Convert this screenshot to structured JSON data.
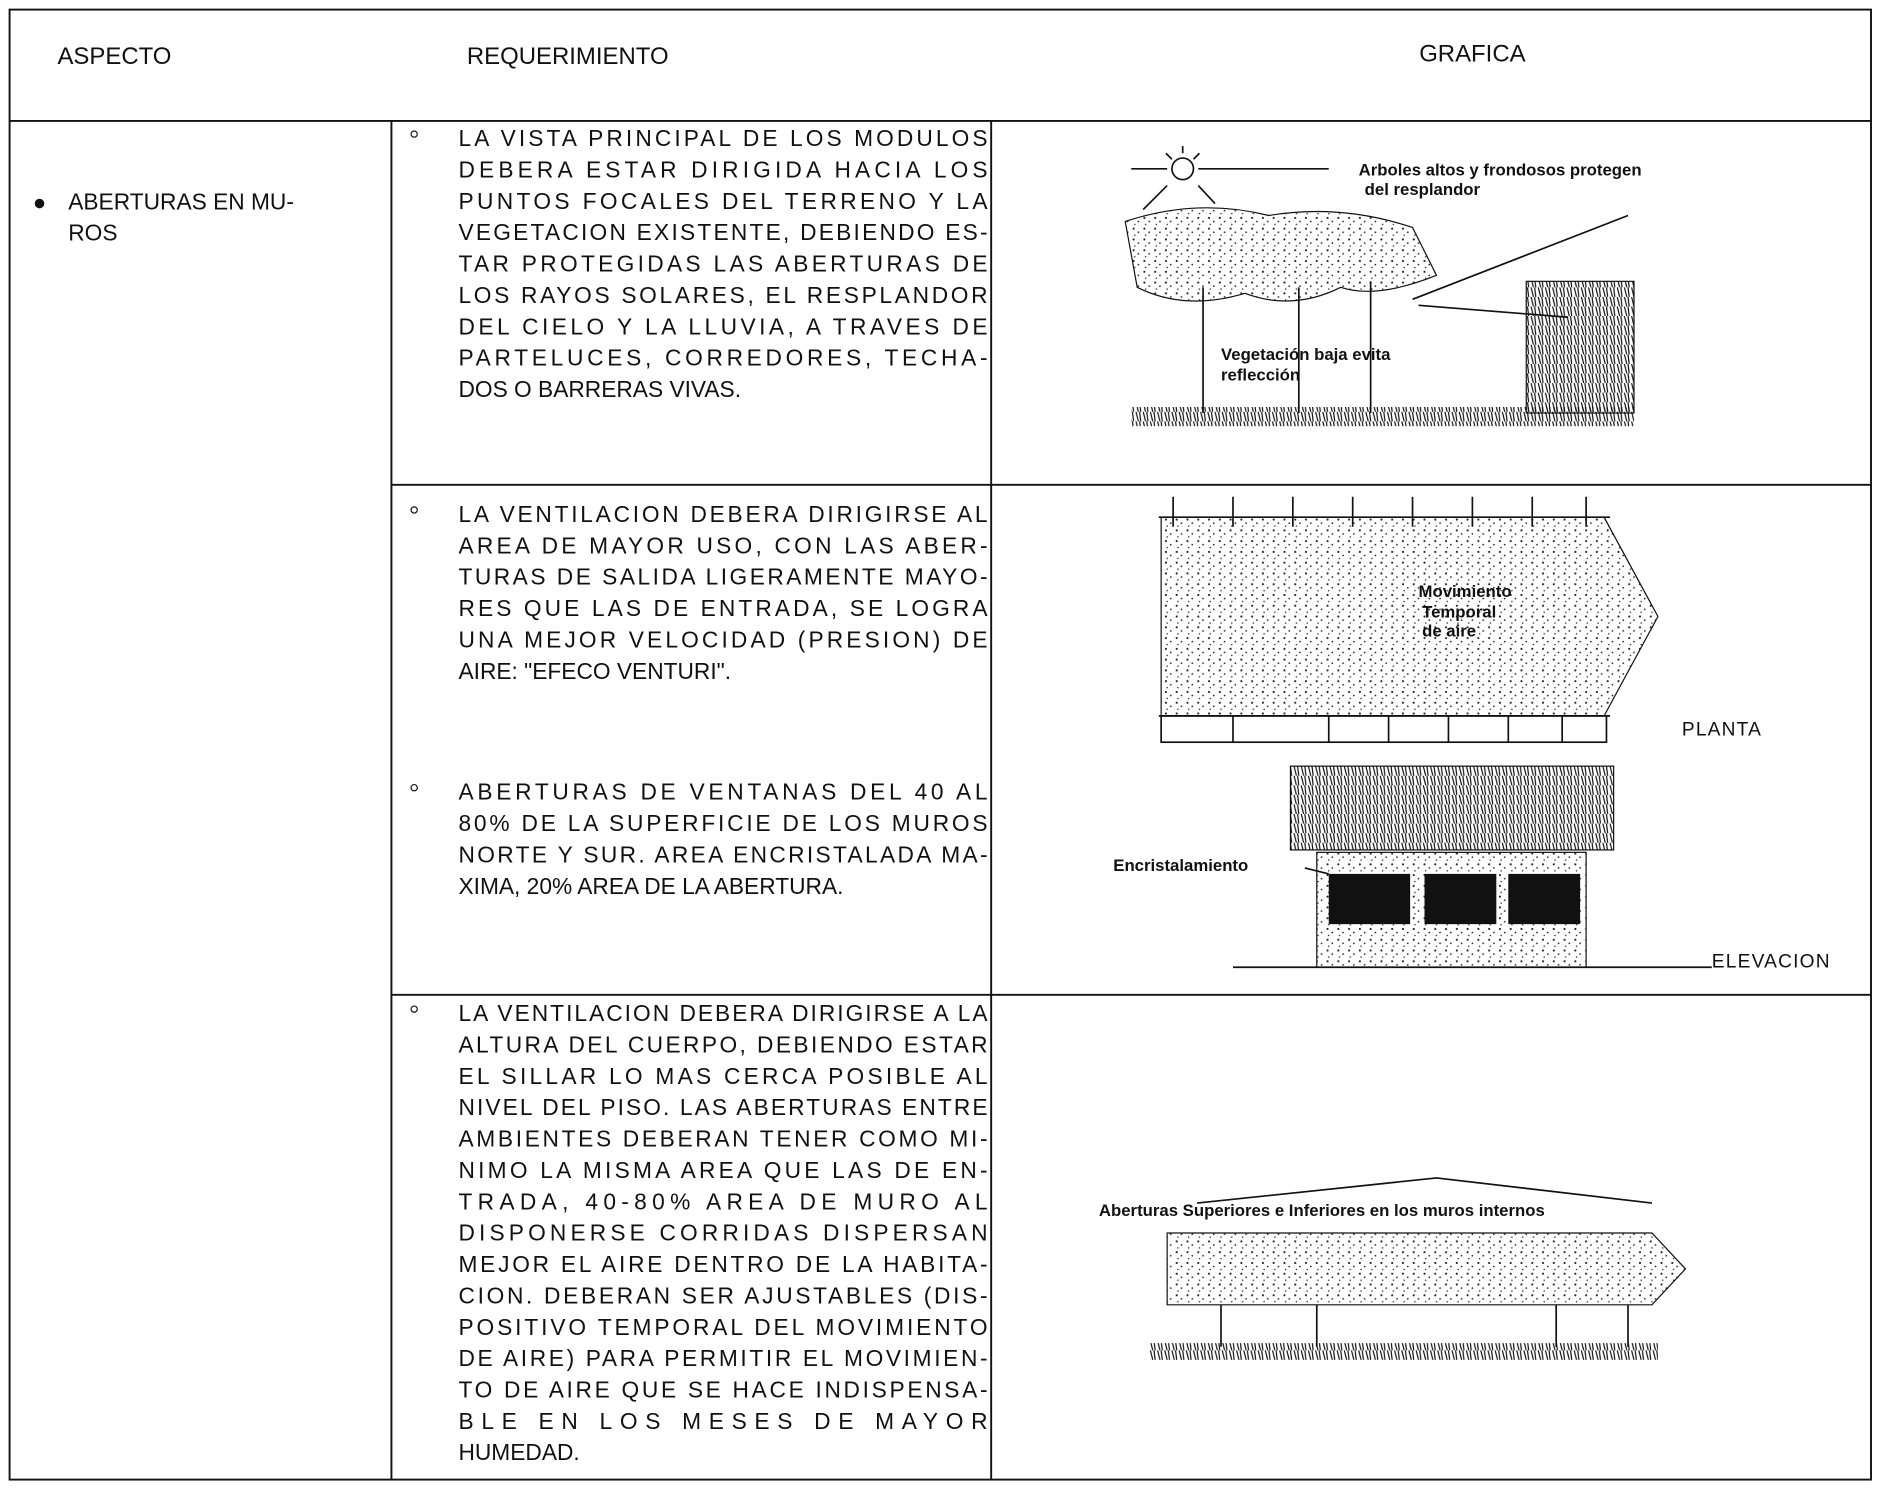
{
  "header": {
    "columns": [
      "ASPECTO",
      "REQUERIMIENTO",
      "GRAFICA"
    ]
  },
  "aspect": {
    "lines": [
      "ABERTURAS EN MU-",
      "ROS"
    ]
  },
  "requirements": [
    {
      "lines": [
        "LA VISTA PRINCIPAL DE LOS MODULOS",
        "DEBERA ESTAR DIRIGIDA HACIA LOS",
        "PUNTOS FOCALES DEL TERRENO Y LA",
        "VEGETACION EXISTENTE, DEBIENDO ES-",
        "TAR PROTEGIDAS LAS ABERTURAS DE",
        "LOS RAYOS SOLARES, EL RESPLANDOR",
        "DEL CIELO Y LA LLUVIA, A TRAVES DE",
        "PARTELUCES, CORREDORES, TECHA-",
        "DOS O BARRERAS VIVAS."
      ]
    },
    {
      "lines": [
        "LA VENTILACION DEBERA DIRIGIRSE AL",
        "AREA DE MAYOR USO, CON LAS ABER-",
        "TURAS DE SALIDA LIGERAMENTE MAYO-",
        "RES QUE LAS DE ENTRADA, SE LOGRA",
        "UNA MEJOR VELOCIDAD (PRESION) DE",
        "AIRE: \"EFECO VENTURI\"."
      ]
    },
    {
      "lines": [
        "ABERTURAS DE VENTANAS DEL 40 AL",
        "80% DE LA SUPERFICIE DE LOS MUROS",
        "NORTE Y SUR. AREA ENCRISTALADA MA-",
        "XIMA, 20% AREA DE LA ABERTURA."
      ]
    },
    {
      "lines": [
        "LA VENTILACION DEBERA DIRIGIRSE A LA",
        "ALTURA DEL CUERPO, DEBIENDO ESTAR",
        "EL SILLAR LO MAS CERCA POSIBLE AL",
        "NIVEL DEL PISO. LAS ABERTURAS ENTRE",
        "AMBIENTES DEBERAN TENER COMO MI-",
        "NIMO LA MISMA AREA QUE LAS DE EN-",
        "TRADA, 40-80% AREA DE MURO AL",
        "DISPONERSE CORRIDAS DISPERSAN",
        "MEJOR EL AIRE DENTRO DE LA HABITA-",
        "CION. DEBERAN SER AJUSTABLES (DIS-",
        "POSITIVO TEMPORAL DEL MOVIMIENTO",
        "DE AIRE) PARA PERMITIR EL MOVIMIEN-",
        "TO DE AIRE QUE SE HACE INDISPENSA-",
        "BLE EN LOS MESES DE MAYOR",
        "HUMEDAD."
      ]
    }
  ],
  "graphics": {
    "figure1": {
      "labels": [
        "Arboles altos y frondosos protegen",
        "del resplandor",
        "Vegetación baja evita",
        "reflección"
      ]
    },
    "figure2": {
      "labels": [
        "Movimiento",
        "Temporal",
        "de aire"
      ],
      "view": "PLANTA"
    },
    "figure3": {
      "label": "Encristalamiento",
      "view": "ELEVACION"
    },
    "figure4": {
      "label": "Aberturas Superiores e Inferiores en los muros internos"
    }
  }
}
